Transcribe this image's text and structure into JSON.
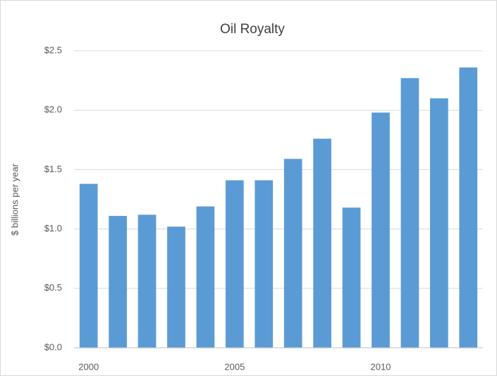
{
  "chart_data": {
    "type": "bar",
    "title": "Oil Royalty",
    "y_label": "$ billions per year",
    "categories": [
      "2000",
      null,
      null,
      null,
      null,
      "2005",
      null,
      null,
      null,
      null,
      "2010",
      null,
      null,
      null
    ],
    "values": [
      1.38,
      1.11,
      1.12,
      1.02,
      1.19,
      1.41,
      1.41,
      1.59,
      1.76,
      1.18,
      1.98,
      2.27,
      2.1,
      2.36
    ],
    "color": "#5b9bd5",
    "ylim": [
      0,
      2.5
    ],
    "yticks": [
      {
        "value": 0,
        "label": "$0.0"
      },
      {
        "value": 0.5,
        "label": "$0.5"
      },
      {
        "value": 1,
        "label": "$1.0"
      },
      {
        "value": 1.5,
        "label": "$1.5"
      },
      {
        "value": 2,
        "label": "$2.0"
      },
      {
        "value": 2.5,
        "label": "$2.5"
      }
    ],
    "grid": true
  }
}
